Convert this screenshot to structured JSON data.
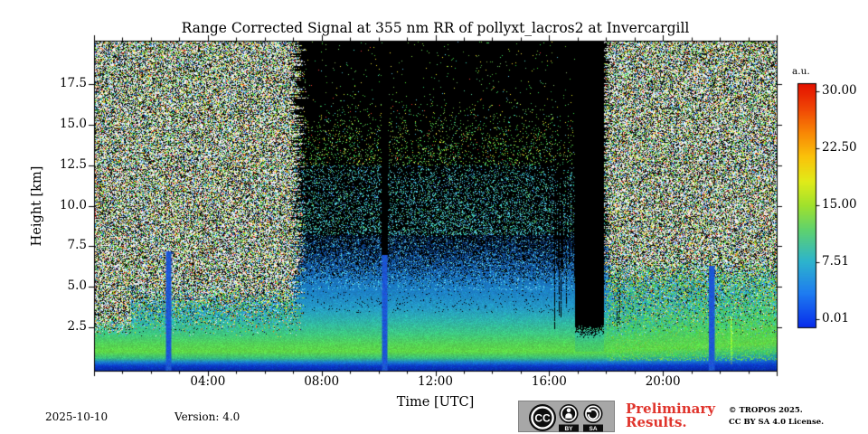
{
  "chart_data": {
    "type": "heatmap",
    "title": "Range Corrected Signal at 355 nm RR of pollyxt_lacros2 at Invercargill",
    "xlabel": "Time [UTC]",
    "ylabel": "Height [km]",
    "x_range_hours": [
      0,
      24
    ],
    "x_major_tick_every_hours": 4,
    "x_minor_tick_every_hours": 1,
    "x_tick_labels": [
      {
        "hour": 4,
        "label": "04:00"
      },
      {
        "hour": 8,
        "label": "08:00"
      },
      {
        "hour": 12,
        "label": "12:00"
      },
      {
        "hour": 16,
        "label": "16:00"
      },
      {
        "hour": 20,
        "label": "20:00"
      }
    ],
    "y_range_km": [
      -0.2,
      20.2
    ],
    "y_tick_labels": [
      {
        "km": 2.5,
        "label": "2.5"
      },
      {
        "km": 5.0,
        "label": "5.0"
      },
      {
        "km": 7.5,
        "label": "7.5"
      },
      {
        "km": 10.0,
        "label": "10.0"
      },
      {
        "km": 12.5,
        "label": "12.5"
      },
      {
        "km": 15.0,
        "label": "15.0"
      },
      {
        "km": 17.5,
        "label": "17.5"
      }
    ],
    "grid": false,
    "colorbar": {
      "label": "a.u.",
      "vmin": 0.01,
      "vmax": 30.0,
      "colormap": "jet",
      "tick_labels": [
        {
          "value": 30.0,
          "label": "30.00"
        },
        {
          "value": 22.5,
          "label": "22.50"
        },
        {
          "value": 15.0,
          "label": "15.00"
        },
        {
          "value": 7.51,
          "label": "7.51"
        },
        {
          "value": 0.01,
          "label": "0.01"
        }
      ]
    },
    "features": {
      "surface_aerosol_green_band_top_km": 2.0,
      "daylight_noise_periods_utc_h": [
        [
          0,
          7.15
        ],
        [
          17.95,
          24
        ]
      ],
      "low_background_period_utc_h": [
        7.15,
        17.95
      ],
      "precipitation_streaks": [
        {
          "time_utc_h": 2.6,
          "top_km": 7.2
        },
        {
          "time_utc_h": 10.2,
          "top_km": 20.0
        },
        {
          "time_utc_h": 21.7,
          "top_km": 6.3
        }
      ],
      "bright_surface_line_utc_h": 22.4,
      "opaque_cloud": {
        "start_utc_h": 16.88,
        "end_utc_h": 17.92,
        "base_km": 2.35,
        "broken_streaks_from_utc_h": 16.15
      }
    }
  },
  "footer": {
    "date": "2025-10-10",
    "version": "Version: 4.0",
    "preliminary_line1": "Preliminary",
    "preliminary_line2": "Results.",
    "copyright_line1": "© TROPOS 2025.",
    "copyright_line2": "CC BY SA 4.0 License.",
    "badge": {
      "cc": "CC",
      "by": "BY",
      "sa": "SA"
    }
  },
  "colors": {
    "preliminary_red": "#e0342c",
    "axis": "#000000",
    "badge_gray": "#a7a7a7"
  }
}
